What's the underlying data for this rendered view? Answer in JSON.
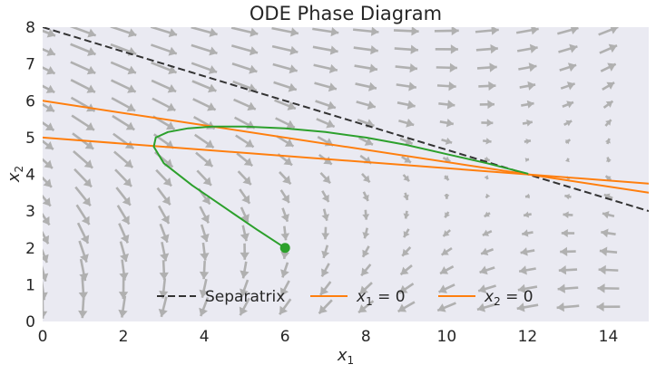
{
  "chart_data": {
    "type": "line",
    "title": "ODE Phase Diagram",
    "xlabel": {
      "main": "x",
      "sub": "1"
    },
    "ylabel": {
      "main": "x",
      "sub": "2"
    },
    "xlim": [
      0,
      15
    ],
    "ylim": [
      0,
      8
    ],
    "xticks": [
      0,
      2,
      4,
      6,
      8,
      10,
      12,
      14
    ],
    "yticks": [
      0,
      1,
      2,
      3,
      4,
      5,
      6,
      7,
      8
    ],
    "grid": false,
    "background_color": "#eaeaf2",
    "legend_placement": "lower-center",
    "vector_field": {
      "color": "#b0b0b0",
      "x_start": 0,
      "x_step": 1,
      "x_count": 15,
      "y_start": 0.4,
      "y_step": 0.5,
      "y_count": 16,
      "equilibrium": [
        12,
        4
      ]
    },
    "series": [
      {
        "name": "Separatrix",
        "style": "dashed",
        "color": "#333333",
        "x": [
          0,
          15
        ],
        "y": [
          8,
          3
        ]
      },
      {
        "name": {
          "prefix": "x",
          "sub": "1",
          "suffix": " = 0"
        },
        "style": "solid",
        "color": "#ff7f0e",
        "x": [
          0,
          15
        ],
        "y": [
          6,
          3.5
        ]
      },
      {
        "name": {
          "prefix": "x",
          "sub": "2",
          "suffix": " = 0"
        },
        "style": "solid",
        "color": "#ff7f0e",
        "x": [
          0,
          15
        ],
        "y": [
          5,
          3.75
        ]
      },
      {
        "name": "",
        "style": "solid",
        "color": "#2ca02c",
        "x": [
          6,
          5.3,
          4.5,
          3.7,
          3.0,
          2.75,
          2.8,
          3.1,
          3.6,
          4.2,
          5.0,
          6.0,
          7.0,
          8.0,
          9.0,
          10.0,
          11.0,
          12.0
        ],
        "y": [
          2.0,
          2.5,
          3.1,
          3.7,
          4.3,
          4.75,
          5.0,
          5.15,
          5.25,
          5.3,
          5.3,
          5.25,
          5.15,
          5.0,
          4.8,
          4.55,
          4.3,
          4.02
        ]
      }
    ],
    "start_point": {
      "x": 6,
      "y": 2,
      "color": "#2ca02c"
    }
  }
}
